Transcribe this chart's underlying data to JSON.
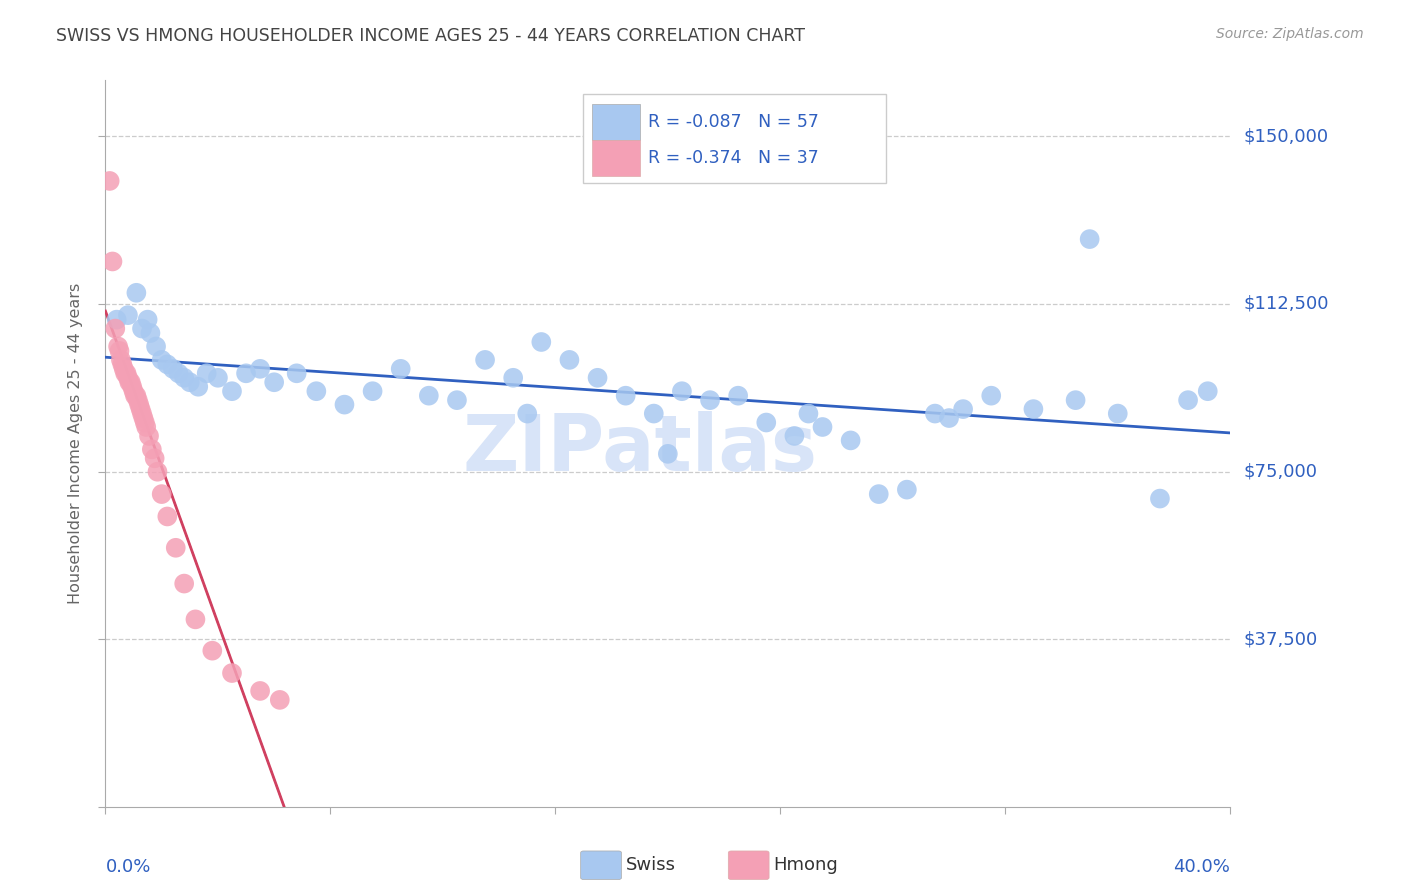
{
  "title": "SWISS VS HMONG HOUSEHOLDER INCOME AGES 25 - 44 YEARS CORRELATION CHART",
  "source": "Source: ZipAtlas.com",
  "ylabel": "Householder Income Ages 25 - 44 years",
  "yticks": [
    0,
    37500,
    75000,
    112500,
    150000
  ],
  "ytick_labels": [
    "",
    "$37,500",
    "$75,000",
    "$112,500",
    "$150,000"
  ],
  "xmin": 0.0,
  "xmax": 40.0,
  "ymin": 0,
  "ymax": 162500,
  "swiss_R": -0.087,
  "swiss_N": 57,
  "hmong_R": -0.374,
  "hmong_N": 37,
  "swiss_color": "#a8c8f0",
  "hmong_color": "#f4a0b5",
  "swiss_line_color": "#3060c0",
  "hmong_line_color": "#d04060",
  "grid_color": "#cccccc",
  "axis_label_color": "#3060c0",
  "title_color": "#444444",
  "swiss_x": [
    0.4,
    0.8,
    1.1,
    1.3,
    1.5,
    1.6,
    1.8,
    2.0,
    2.2,
    2.4,
    2.6,
    2.8,
    3.0,
    3.3,
    3.6,
    4.0,
    4.5,
    5.0,
    5.5,
    6.0,
    6.8,
    7.5,
    8.5,
    9.5,
    10.5,
    11.5,
    12.5,
    13.5,
    14.5,
    15.5,
    16.5,
    17.5,
    18.5,
    19.5,
    20.5,
    21.5,
    22.5,
    23.5,
    24.5,
    25.5,
    26.5,
    27.5,
    28.5,
    29.5,
    30.5,
    31.5,
    33.0,
    34.5,
    36.0,
    37.5,
    38.5,
    39.2,
    15.0,
    20.0,
    25.0,
    30.0,
    35.0
  ],
  "swiss_y": [
    109000,
    110000,
    115000,
    107000,
    109000,
    106000,
    103000,
    100000,
    99000,
    98000,
    97000,
    96000,
    95000,
    94000,
    97000,
    96000,
    93000,
    97000,
    98000,
    95000,
    97000,
    93000,
    90000,
    93000,
    98000,
    92000,
    91000,
    100000,
    96000,
    104000,
    100000,
    96000,
    92000,
    88000,
    93000,
    91000,
    92000,
    86000,
    83000,
    85000,
    82000,
    70000,
    71000,
    88000,
    89000,
    92000,
    89000,
    91000,
    88000,
    69000,
    91000,
    93000,
    88000,
    79000,
    88000,
    87000,
    127000
  ],
  "hmong_x": [
    0.15,
    0.25,
    0.35,
    0.45,
    0.5,
    0.55,
    0.6,
    0.65,
    0.7,
    0.75,
    0.8,
    0.85,
    0.9,
    0.95,
    1.0,
    1.05,
    1.1,
    1.15,
    1.2,
    1.25,
    1.3,
    1.35,
    1.4,
    1.45,
    1.55,
    1.65,
    1.75,
    1.85,
    2.0,
    2.2,
    2.5,
    2.8,
    3.2,
    3.8,
    4.5,
    5.5,
    6.2
  ],
  "hmong_y": [
    140000,
    122000,
    107000,
    103000,
    102000,
    100000,
    99000,
    98000,
    97000,
    97000,
    96000,
    95000,
    95000,
    94000,
    93000,
    92000,
    92000,
    91000,
    90000,
    89000,
    88000,
    87000,
    86000,
    85000,
    83000,
    80000,
    78000,
    75000,
    70000,
    65000,
    58000,
    50000,
    42000,
    35000,
    30000,
    26000,
    24000
  ],
  "watermark": "ZIPatlas",
  "watermark_color": "#d8e4f8"
}
